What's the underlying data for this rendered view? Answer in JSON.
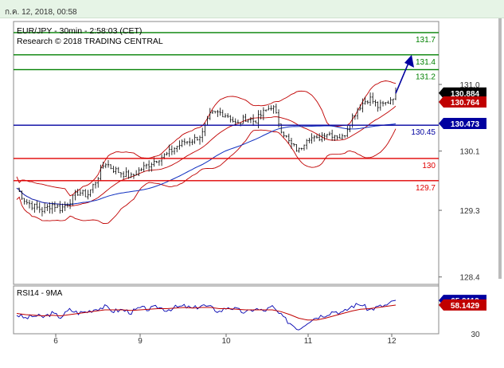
{
  "header": {
    "timestamp": "ก.ค. 12, 2018, 00:58"
  },
  "colors": {
    "support": "#e00000",
    "resistance": "#008000",
    "pivot": "#0000a0",
    "bollinger": "#c00000",
    "moving_average": "#1030c0",
    "candles": "#000000",
    "rsi": "#0000b0",
    "rsi_ma": "#c00000"
  },
  "chart_data": [
    {
      "type": "candlestick",
      "title": "EUR/JPY - 30min - 2:58:03 (CET)",
      "subtitle": "Research © 2018 TRADING CENTRAL",
      "ylim": [
        128.3,
        131.85
      ],
      "y_ticks": [
        {
          "value": 131.0,
          "label": "131.0"
        },
        {
          "value": 130.1,
          "label": "130.1"
        },
        {
          "value": 129.3,
          "label": "129.3"
        },
        {
          "value": 128.4,
          "label": "128.4"
        }
      ],
      "x_ticks": [
        "6",
        "9",
        "10",
        "11",
        "12"
      ],
      "resistance_levels": [
        {
          "value": 131.7,
          "label": "131.7"
        },
        {
          "value": 131.4,
          "label": "131.4"
        },
        {
          "value": 131.2,
          "label": "131.2"
        }
      ],
      "pivot": {
        "value": 130.45,
        "label": "130.45"
      },
      "support_levels": [
        {
          "value": 130.0,
          "label": "130"
        },
        {
          "value": 129.7,
          "label": "129.7"
        }
      ],
      "last_price": {
        "value": 130.884,
        "label": "130.884"
      },
      "bollinger_mid": {
        "value": 130.764,
        "label": "130.764"
      },
      "moving_average_value": {
        "value": 130.473,
        "label": "130.473"
      },
      "projection": {
        "from": 130.88,
        "to": 131.4
      },
      "close_path": [
        129.6,
        129.42,
        129.35,
        129.3,
        129.38,
        129.32,
        129.42,
        129.55,
        129.5,
        129.7,
        129.95,
        129.85,
        129.8,
        129.75,
        129.85,
        129.92,
        130.0,
        130.05,
        130.15,
        130.22,
        130.25,
        130.32,
        130.6,
        130.62,
        130.58,
        130.45,
        130.55,
        130.5,
        130.62,
        130.72,
        130.4,
        130.2,
        130.1,
        130.3,
        130.25,
        130.35,
        130.32,
        130.28,
        130.55,
        130.72,
        130.82,
        130.7,
        130.75,
        130.88
      ]
    },
    {
      "type": "line",
      "title": "RSI14 - 9MA",
      "y_ticks": [
        {
          "value": 30,
          "label": "30"
        }
      ],
      "x_ticks": [
        "6",
        "9",
        "10",
        "11",
        "12"
      ],
      "ylim": [
        10,
        90
      ],
      "rsi_value": {
        "value": 65.9119,
        "label": "65.9119"
      },
      "ma_value": {
        "value": 58.1429,
        "label": "58.1429"
      },
      "rsi_path": [
        42,
        36,
        40,
        38,
        44,
        38,
        50,
        45,
        47,
        52,
        55,
        48,
        50,
        46,
        53,
        51,
        55,
        50,
        54,
        56,
        52,
        58,
        54,
        47,
        55,
        50,
        45,
        52,
        48,
        55,
        40,
        28,
        18,
        30,
        38,
        42,
        48,
        45,
        56,
        60,
        50,
        55,
        58,
        66
      ],
      "ma_path": [
        44,
        42,
        41,
        40,
        41,
        40,
        42,
        44,
        46,
        48,
        50,
        50,
        50,
        49,
        50,
        51,
        52,
        52,
        53,
        54,
        53,
        54,
        54,
        52,
        52,
        51,
        50,
        50,
        50,
        50,
        47,
        42,
        36,
        33,
        33,
        36,
        40,
        44,
        48,
        51,
        52,
        54,
        56,
        58
      ]
    }
  ]
}
